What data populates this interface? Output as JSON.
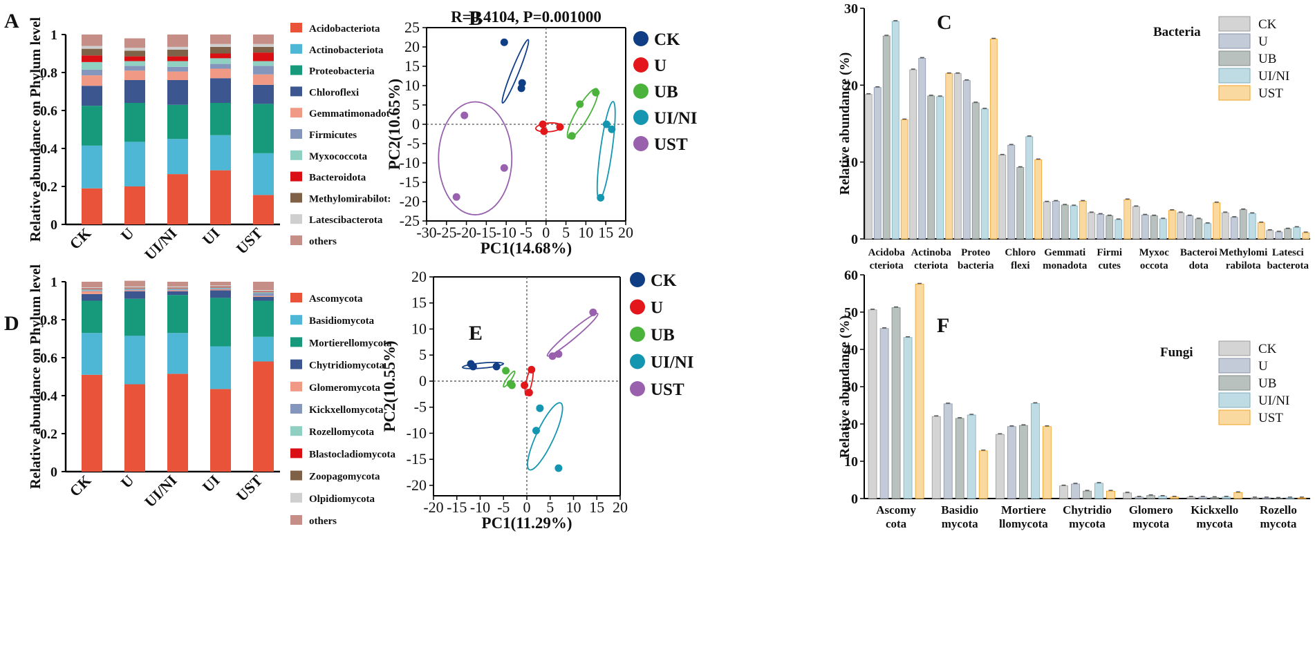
{
  "panel_labels": [
    "A",
    "B",
    "C",
    "D",
    "E",
    "F"
  ],
  "colors": {
    "phylum": {
      "Acidobacteriota": "#e8533a",
      "Actinobacteriota": "#4fb7d6",
      "Proteobacteria": "#17997c",
      "Chloroflexi": "#3c5790",
      "Gemmatimonadot": "#f09a86",
      "Firmicutes": "#8496bc",
      "Myxococcota": "#8fd0c3",
      "Bacteroidota": "#d90f14",
      "Methylomirabilot": "#7f6148",
      "Latescibacterota": "#cfcfcf",
      "others": "#c58f87",
      "Ascomycota": "#e8533a",
      "Basidiomycota": "#4fb7d6",
      "Mortierellomycota": "#17997c",
      "Chytridiomycota": "#3c5790",
      "Glomeromycota": "#f09a86",
      "Kickxellomycota": "#8496bc",
      "Rozellomycota": "#8fd0c3",
      "Blastocladiomycota": "#d90f14",
      "Zoopagomycota": "#7f6148",
      "Olpidiomycota": "#cfcfcf"
    },
    "groups": {
      "CK": "#0f3e85",
      "U": "#e3171b",
      "UB": "#4bb33c",
      "UI/NI": "#1496b0",
      "UST": "#9860ad"
    },
    "groups_bar": {
      "CK": "#d4d4d4",
      "U": "#c3cbd9",
      "UB": "#b9c1be",
      "UI/NI": "#bfdbe4",
      "UST": "#fad9a0"
    },
    "groups_bar_edge": {
      "CK": "#9a9a9a",
      "U": "#8993a8",
      "UB": "#808a86",
      "UI/NI": "#7faebc",
      "UST": "#f0a020"
    }
  },
  "chart_data": [
    {
      "id": "A",
      "type": "bar",
      "stacked": true,
      "title": "",
      "xlabel": "",
      "ylabel": "Relative abundance on Phylum level",
      "ylim": [
        0,
        1
      ],
      "yticks": [
        "0",
        "0.2",
        "0.4",
        "0.6",
        "0.8",
        "1"
      ],
      "categories": [
        "CK",
        "U",
        "UI/NI",
        "UI",
        "UST"
      ],
      "series": [
        {
          "name": "Acidobacteriota",
          "values": [
            0.19,
            0.2,
            0.265,
            0.285,
            0.155
          ]
        },
        {
          "name": "Actinobacteriota",
          "values": [
            0.225,
            0.235,
            0.185,
            0.185,
            0.22
          ]
        },
        {
          "name": "Proteobacteria",
          "values": [
            0.21,
            0.205,
            0.18,
            0.17,
            0.26
          ]
        },
        {
          "name": "Chloroflexi",
          "values": [
            0.105,
            0.12,
            0.13,
            0.13,
            0.1
          ]
        },
        {
          "name": "Gemmatimonadot",
          "values": [
            0.055,
            0.05,
            0.045,
            0.05,
            0.055
          ]
        },
        {
          "name": "Firmicutes",
          "values": [
            0.03,
            0.025,
            0.025,
            0.025,
            0.045
          ]
        },
        {
          "name": "Myxococcota",
          "values": [
            0.04,
            0.025,
            0.03,
            0.03,
            0.025
          ]
        },
        {
          "name": "Bacteroidota",
          "values": [
            0.035,
            0.025,
            0.025,
            0.025,
            0.045
          ]
        },
        {
          "name": "Methylomirabilot",
          "values": [
            0.035,
            0.03,
            0.035,
            0.035,
            0.03
          ]
        },
        {
          "name": "Latescibacterota",
          "values": [
            0.015,
            0.015,
            0.015,
            0.015,
            0.015
          ]
        },
        {
          "name": "others",
          "values": [
            0.06,
            0.05,
            0.065,
            0.05,
            0.05
          ]
        }
      ],
      "legend": [
        "Acidobacteriota",
        "Actinobacteriota",
        "Proteobacteria",
        "Chloroflexi",
        "Gemmatimonadot",
        "Firmicutes",
        "Myxococcota",
        "Bacteroidota",
        "Methylomirabilot:",
        "Latescibacterota",
        "others"
      ]
    },
    {
      "id": "B",
      "type": "scatter",
      "title": "R=0.4104, P=0.001000",
      "xlabel": "PC1(14.68%)",
      "ylabel": "PC2(10.65%)",
      "xlim": [
        -30,
        20
      ],
      "ylim": [
        -25,
        25
      ],
      "xticks": [
        -30,
        -25,
        -20,
        -15,
        -10,
        -5,
        0,
        5,
        10,
        15,
        20
      ],
      "yticks": [
        25,
        20,
        15,
        10,
        5,
        0,
        -5,
        -10,
        -15,
        -20,
        -25
      ],
      "series": [
        {
          "name": "CK",
          "points": [
            [
              -10.5,
              21.2
            ],
            [
              -6.0,
              10.7
            ],
            [
              -6.2,
              9.3
            ]
          ]
        },
        {
          "name": "U",
          "points": [
            [
              -0.8,
              0.0
            ],
            [
              -0.5,
              -1.8
            ],
            [
              3.5,
              -0.7
            ]
          ]
        },
        {
          "name": "UB",
          "points": [
            [
              12.5,
              8.2
            ],
            [
              8.5,
              5.2
            ],
            [
              6.5,
              -3.0
            ]
          ]
        },
        {
          "name": "UI/NI",
          "points": [
            [
              15.2,
              0.0
            ],
            [
              16.5,
              -1.3
            ],
            [
              13.7,
              -19.0
            ]
          ]
        },
        {
          "name": "UST",
          "points": [
            [
              -20.5,
              2.3
            ],
            [
              -10.5,
              -11.3
            ],
            [
              -22.5,
              -18.8
            ]
          ]
        }
      ],
      "ellipses": [
        {
          "group": "CK",
          "cx": -7.7,
          "cy": 13.7,
          "rx": 8.8,
          "ry": 0.9,
          "angle": -68
        },
        {
          "group": "U",
          "cx": 0.7,
          "cy": -0.8,
          "rx": 3.3,
          "ry": 1.1,
          "angle": -5
        },
        {
          "group": "UB",
          "cx": 9.2,
          "cy": 2.8,
          "rx": 7.3,
          "ry": 1.7,
          "angle": -60
        },
        {
          "group": "UI/NI",
          "cx": 15.1,
          "cy": -6.8,
          "rx": 12.8,
          "ry": 1.5,
          "angle": -82
        },
        {
          "group": "UST",
          "cx": -17.8,
          "cy": -8.8,
          "rx": 9.2,
          "ry": 14.2,
          "angle": 0
        }
      ],
      "legend": [
        "CK",
        "U",
        "UB",
        "UI/NI",
        "UST"
      ]
    },
    {
      "id": "C",
      "type": "bar",
      "stacked": false,
      "title": "Bacteria",
      "xlabel": "",
      "ylabel": "Relative abundance (%)",
      "ylim": [
        0,
        30
      ],
      "yticks": [
        "0",
        "10",
        "20",
        "30"
      ],
      "categories": [
        "Acidoba cteriota",
        "Actinoba cteriota",
        "Proteo bacteria",
        "Chloro flexi",
        "Gemmati monadota",
        "Firmi cutes",
        "Myxoc occota",
        "Bacteroi dota",
        "Methylomi rabilota",
        "Latesci bacterota"
      ],
      "category_lines": [
        [
          "Acidoba",
          "cteriota"
        ],
        [
          "Actinoba",
          "cteriota"
        ],
        [
          "Proteo",
          "bacteria"
        ],
        [
          "Chloro",
          "flexi"
        ],
        [
          "Gemmati",
          "monadota"
        ],
        [
          "Firmi",
          "cutes"
        ],
        [
          "Myxoc",
          "occota"
        ],
        [
          "Bacteroi",
          "dota"
        ],
        [
          "Methylomi",
          "rabilota"
        ],
        [
          "Latesci",
          "bacterota"
        ]
      ],
      "series": [
        {
          "name": "CK",
          "values": [
            18.8,
            22.0,
            21.5,
            10.9,
            4.8,
            3.4,
            4.2,
            3.4,
            3.4,
            1.1
          ]
        },
        {
          "name": "U",
          "values": [
            19.7,
            23.5,
            20.6,
            12.2,
            4.9,
            3.2,
            3.1,
            3.0,
            2.8,
            0.9
          ]
        },
        {
          "name": "UB",
          "values": [
            26.4,
            18.6,
            17.7,
            9.3,
            4.4,
            3.0,
            3.0,
            2.6,
            3.8,
            1.3
          ]
        },
        {
          "name": "UI/NI",
          "values": [
            28.3,
            18.5,
            16.9,
            13.3,
            4.3,
            2.5,
            2.6,
            2.0,
            3.3,
            1.5
          ]
        },
        {
          "name": "UST",
          "values": [
            15.5,
            21.5,
            26.0,
            10.3,
            4.9,
            5.1,
            3.7,
            4.7,
            2.1,
            0.8
          ]
        }
      ],
      "legend": [
        "CK",
        "U",
        "UB",
        "UI/NI",
        "UST"
      ]
    },
    {
      "id": "D",
      "type": "bar",
      "stacked": true,
      "title": "",
      "xlabel": "",
      "ylabel": "Relative abundance on Phylum level",
      "ylim": [
        0,
        1
      ],
      "yticks": [
        "0",
        "0.2",
        "0.4",
        "0.6",
        "0.8",
        "1"
      ],
      "categories": [
        "CK",
        "U",
        "UI/NI",
        "UI",
        "UST"
      ],
      "series": [
        {
          "name": "Ascomycota",
          "values": [
            0.51,
            0.46,
            0.515,
            0.435,
            0.58
          ]
        },
        {
          "name": "Basidiomycota",
          "values": [
            0.22,
            0.255,
            0.215,
            0.225,
            0.13
          ]
        },
        {
          "name": "Mortierellomycota",
          "values": [
            0.17,
            0.195,
            0.2,
            0.255,
            0.19
          ]
        },
        {
          "name": "Chytridiomycota",
          "values": [
            0.035,
            0.04,
            0.02,
            0.04,
            0.02
          ]
        },
        {
          "name": "Glomeromycota",
          "values": [
            0.015,
            0.005,
            0.005,
            0.005,
            0.005
          ]
        },
        {
          "name": "Kickxellomycota",
          "values": [
            0.005,
            0.005,
            0.005,
            0.005,
            0.015
          ]
        },
        {
          "name": "Rozellomycota",
          "values": [
            0.005,
            0.005,
            0.005,
            0.005,
            0.005
          ]
        },
        {
          "name": "Blastocladiomycota",
          "values": [
            0.003,
            0.003,
            0.003,
            0.003,
            0.003
          ]
        },
        {
          "name": "Zoopagomycota",
          "values": [
            0.002,
            0.002,
            0.002,
            0.002,
            0.002
          ]
        },
        {
          "name": "Olpidiomycota",
          "values": [
            0.005,
            0.005,
            0.005,
            0.005,
            0.005
          ]
        },
        {
          "name": "others",
          "values": [
            0.03,
            0.03,
            0.025,
            0.02,
            0.045
          ]
        }
      ],
      "legend": [
        "Ascomycota",
        "Basidiomycota",
        "Mortierellomycota",
        "Chytridiomycota",
        "Glomeromycota",
        "Kickxellomycota",
        "Rozellomycota",
        "Blastocladiomycota",
        "Zoopagomycota",
        "Olpidiomycota",
        "others"
      ]
    },
    {
      "id": "E",
      "type": "scatter",
      "title": "",
      "xlabel": "PC1(11.29%)",
      "ylabel": "PC2(10.55%)",
      "xlim": [
        -20,
        20
      ],
      "ylim": [
        -22,
        20
      ],
      "xticks": [
        -20,
        -15,
        -10,
        -5,
        0,
        5,
        10,
        15,
        20
      ],
      "yticks": [
        20,
        15,
        10,
        5,
        0,
        -5,
        -10,
        -15,
        -20
      ],
      "series": [
        {
          "name": "CK",
          "points": [
            [
              -12.0,
              3.3
            ],
            [
              -11.5,
              2.8
            ],
            [
              -6.5,
              2.8
            ]
          ]
        },
        {
          "name": "U",
          "points": [
            [
              1.0,
              2.2
            ],
            [
              -0.5,
              -0.8
            ],
            [
              0.5,
              -2.2
            ]
          ]
        },
        {
          "name": "UB",
          "points": [
            [
              -4.5,
              2.0
            ],
            [
              -3.5,
              -0.5
            ],
            [
              -3.2,
              -0.8
            ]
          ]
        },
        {
          "name": "UI/NI",
          "points": [
            [
              2.8,
              -5.2
            ],
            [
              2.0,
              -9.5
            ],
            [
              6.8,
              -16.7
            ]
          ]
        },
        {
          "name": "UST",
          "points": [
            [
              14.2,
              13.2
            ],
            [
              5.5,
              4.8
            ],
            [
              6.8,
              5.2
            ]
          ]
        }
      ],
      "ellipses": [
        {
          "group": "CK",
          "cx": -9.4,
          "cy": 3.0,
          "rx": 4.4,
          "ry": 0.55,
          "angle": -5
        },
        {
          "group": "U",
          "cx": 0.5,
          "cy": -0.1,
          "rx": 2.7,
          "ry": 0.55,
          "angle": -78
        },
        {
          "group": "UB",
          "cx": -3.8,
          "cy": 0.4,
          "rx": 1.9,
          "ry": 0.4,
          "angle": -55
        },
        {
          "group": "UI/NI",
          "cx": 3.9,
          "cy": -10.6,
          "rx": 7.2,
          "ry": 1.7,
          "angle": -65
        },
        {
          "group": "UST",
          "cx": 9.8,
          "cy": 8.9,
          "rx": 6.7,
          "ry": 0.8,
          "angle": -40
        }
      ],
      "legend": [
        "CK",
        "U",
        "UB",
        "UI/NI",
        "UST"
      ]
    },
    {
      "id": "F",
      "type": "bar",
      "stacked": false,
      "title": "Fungi",
      "xlabel": "",
      "ylabel": "Relative abundance (%)",
      "ylim": [
        0,
        60
      ],
      "yticks": [
        "0",
        "10",
        "20",
        "30",
        "40",
        "50",
        "60"
      ],
      "categories": [
        "Ascomy cota",
        "Basidio mycota",
        "Mortiere llomycota",
        "Chytridio mycota",
        "Glomero mycota",
        "Kickxello mycota",
        "Rozello mycota"
      ],
      "category_lines": [
        [
          "Ascomy",
          "cota"
        ],
        [
          "Basidio",
          "mycota"
        ],
        [
          "Mortiere",
          "llomycota"
        ],
        [
          "Chytridio",
          "mycota"
        ],
        [
          "Glomero",
          "mycota"
        ],
        [
          "Kickxello",
          "mycota"
        ],
        [
          "Rozello",
          "mycota"
        ]
      ],
      "series": [
        {
          "name": "CK",
          "values": [
            50.6,
            22.0,
            17.2,
            3.4,
            1.5,
            0.4,
            0.2
          ]
        },
        {
          "name": "U",
          "values": [
            45.6,
            25.4,
            19.3,
            3.9,
            0.4,
            0.4,
            0.2
          ]
        },
        {
          "name": "UB",
          "values": [
            51.2,
            21.5,
            19.6,
            2.0,
            0.8,
            0.3,
            0.1
          ]
        },
        {
          "name": "UI/NI",
          "values": [
            43.2,
            22.4,
            25.5,
            4.1,
            0.6,
            0.4,
            0.2
          ]
        },
        {
          "name": "UST",
          "values": [
            57.5,
            12.8,
            19.3,
            2.0,
            0.4,
            1.6,
            0.2
          ]
        }
      ],
      "legend": [
        "CK",
        "U",
        "UB",
        "UI/NI",
        "UST"
      ]
    }
  ]
}
